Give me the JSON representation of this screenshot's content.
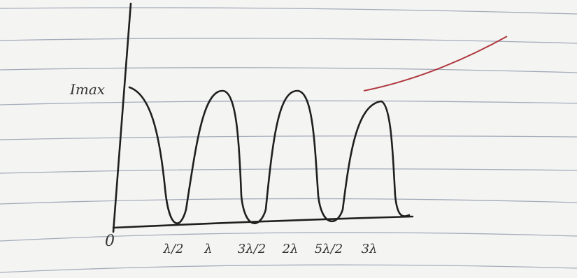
{
  "sketch": {
    "y_label": "Imax",
    "origin": "0",
    "x_labels": [
      "λ/2",
      "λ",
      "3λ/2",
      "2λ",
      "5λ/2",
      "3λ"
    ]
  }
}
